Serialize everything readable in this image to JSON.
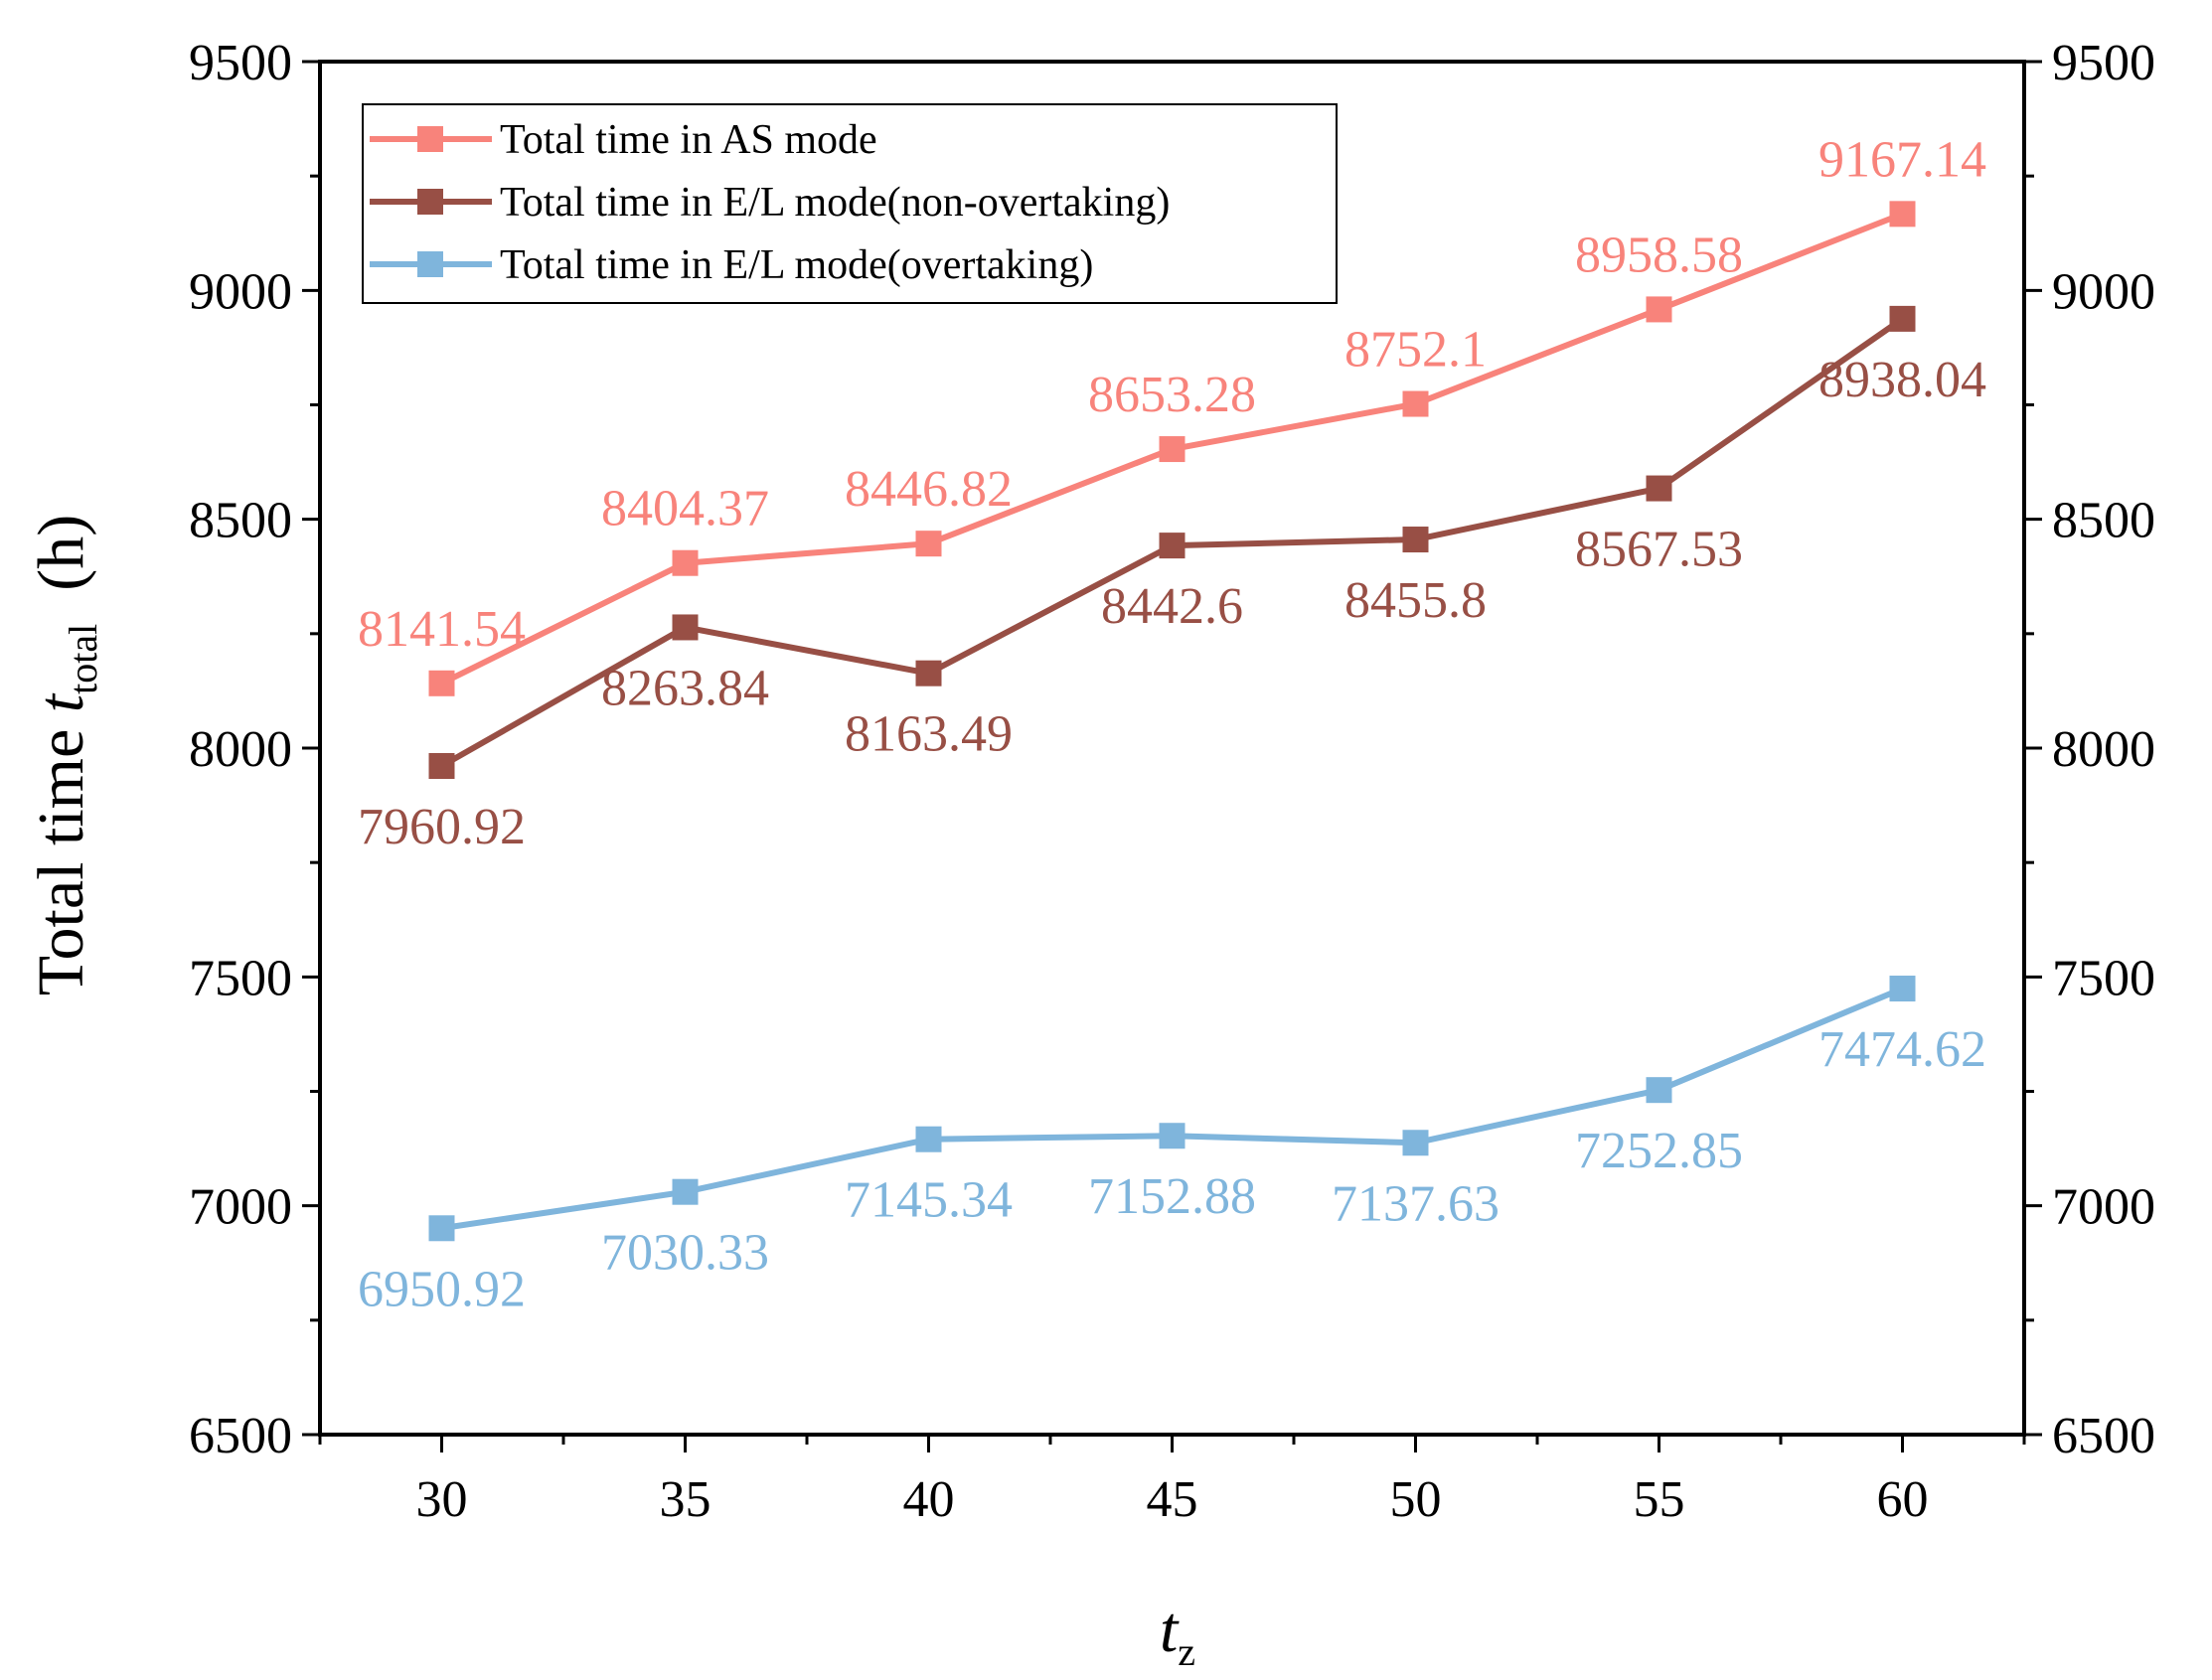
{
  "chart_data": {
    "type": "line",
    "title": "",
    "xlabel": "t",
    "xlabel_sub": "z",
    "ylabel": "Total time ",
    "ylabel_var": "t",
    "ylabel_sub": "total",
    "ylabel_unit": "  (h)",
    "x": [
      30,
      35,
      40,
      45,
      50,
      55,
      60
    ],
    "x_ticks": [
      "30",
      "35",
      "40",
      "45",
      "50",
      "55",
      "60"
    ],
    "xlim": [
      27.5,
      62.5
    ],
    "ylim": [
      6500,
      9500
    ],
    "y_ticks": [
      "6500",
      "7000",
      "7500",
      "8000",
      "8500",
      "9000",
      "9500"
    ],
    "right_axis_mirror": true,
    "grid": false,
    "legend_position": "top-left",
    "series": [
      {
        "name": "Total time in AS mode",
        "color": "#f8837b",
        "values": [
          8141.54,
          8404.37,
          8446.82,
          8653.28,
          8752.1,
          8958.58,
          9167.14
        ],
        "labels": [
          "8141.54",
          "8404.37",
          "8446.82",
          "8653.28",
          "8752.1",
          "8958.58",
          "9167.14"
        ],
        "label_position": [
          "above",
          "above",
          "above",
          "above",
          "above",
          "above",
          "above"
        ]
      },
      {
        "name": "Total time in E/L mode(non-overtaking)",
        "color": "#984f45",
        "values": [
          7960.92,
          8263.84,
          8163.49,
          8442.6,
          8455.8,
          8567.53,
          8938.04
        ],
        "labels": [
          "7960.92",
          "8263.84",
          "8163.49",
          "8442.6",
          "8455.8",
          "8567.53",
          "8938.04"
        ],
        "label_position": [
          "below",
          "below",
          "below",
          "below",
          "below",
          "below",
          "below"
        ]
      },
      {
        "name": "Total time in E/L mode(overtaking)",
        "color": "#7fb5dc",
        "values": [
          6950.92,
          7030.33,
          7145.34,
          7152.88,
          7137.63,
          7252.85,
          7474.62
        ],
        "labels": [
          "6950.92",
          "7030.33",
          "7145.34",
          "7152.88",
          "7137.63",
          "7252.85",
          "7474.62"
        ],
        "label_position": [
          "below",
          "below",
          "below",
          "below",
          "below",
          "below",
          "below"
        ]
      }
    ]
  }
}
